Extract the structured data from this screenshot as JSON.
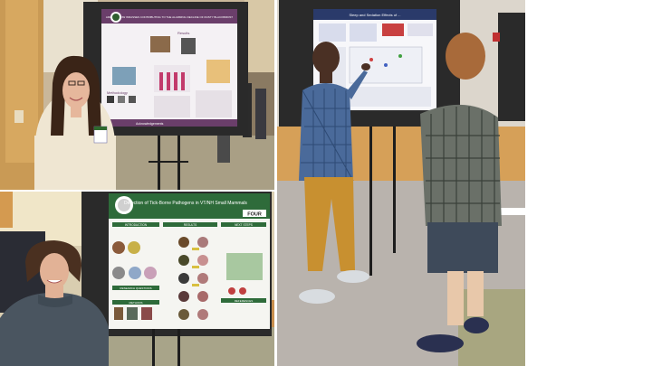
{
  "collage": {
    "photo1": {
      "poster_title": "ARE RAINBOW WRASSES CONTRIBUTING TO THE ALARMING DECLINE OF RUSTY BLACKBIRDS?",
      "headings": [
        "Results",
        "Methodology",
        "Acknowledgements"
      ]
    },
    "photo2": {
      "poster_title": "Detection of Tick-Borne Pathogens in VT/NH Small Mammals",
      "headings": [
        "INTRODUCTION",
        "RESULTS",
        "NEXT STEPS",
        "RESEARCH QUESTIONS",
        "METHODS",
        "REFERENCES"
      ],
      "badge": "FOUR"
    },
    "photo3": {
      "poster_title": "Sleep and Sedation Effects of ..."
    }
  }
}
